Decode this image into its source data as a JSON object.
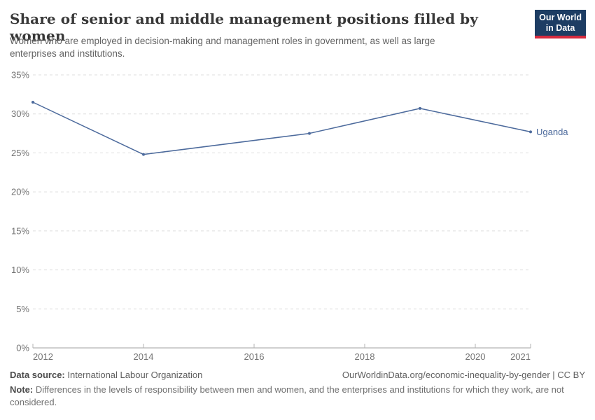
{
  "header": {
    "title": "Share of senior and middle management positions filled by women",
    "subtitle": "Women who are employed in decision-making and management roles in government, as well as large enterprises and institutions.",
    "logo": {
      "line1": "Our World",
      "line2": "in Data",
      "bg_color": "#1d3d63",
      "accent_color": "#d52b3e"
    }
  },
  "chart_data": {
    "type": "line",
    "title": "Share of senior and middle management positions filled by women",
    "x": [
      2012,
      2014,
      2017,
      2019,
      2021
    ],
    "series": [
      {
        "name": "Uganda",
        "values": [
          31.5,
          24.8,
          27.5,
          30.7,
          27.7
        ],
        "color": "#4c6a9c"
      }
    ],
    "xlabel": "",
    "ylabel": "",
    "xlim": [
      2012,
      2021
    ],
    "ylim": [
      0,
      35
    ],
    "x_ticks": [
      {
        "value": 2012,
        "label": "2012"
      },
      {
        "value": 2014,
        "label": "2014"
      },
      {
        "value": 2016,
        "label": "2016"
      },
      {
        "value": 2018,
        "label": "2018"
      },
      {
        "value": 2020,
        "label": "2020"
      },
      {
        "value": 2021,
        "label": "2021"
      }
    ],
    "y_ticks": [
      {
        "value": 0,
        "label": "0%"
      },
      {
        "value": 5,
        "label": "5%"
      },
      {
        "value": 10,
        "label": "10%"
      },
      {
        "value": 15,
        "label": "15%"
      },
      {
        "value": 20,
        "label": "20%"
      },
      {
        "value": 25,
        "label": "25%"
      },
      {
        "value": 30,
        "label": "30%"
      },
      {
        "value": 35,
        "label": "35%"
      }
    ],
    "grid": "horizontal-dashed",
    "legend": "end-of-line-label",
    "colors": {
      "line": "#4c6a9c",
      "gridline": "#dddddd",
      "axis": "#a0a0a0",
      "tick": "#b3b3b3",
      "tick_text": "#737373"
    }
  },
  "footer": {
    "source_label": "Data source:",
    "source_value": "International Labour Organization",
    "attribution": "OurWorldinData.org/economic-inequality-by-gender | CC BY",
    "note_label": "Note:",
    "note_value": "Differences in the levels of responsibility between men and women, and the enterprises and institutions for which they work, are not considered."
  }
}
